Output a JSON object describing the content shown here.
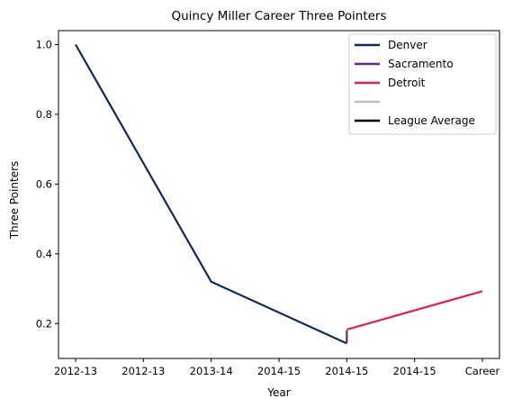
{
  "chart_data": {
    "type": "line",
    "title": "Quincy Miller Career Three Pointers",
    "xlabel": "Year",
    "ylabel": "Three Pointers",
    "x_ticks": [
      "2012-13",
      "2012-13",
      "2013-14",
      "2014-15",
      "2014-15",
      "2014-15",
      "Career"
    ],
    "y_ticks": [
      "0.2",
      "0.4",
      "0.6",
      "0.8",
      "1.0"
    ],
    "ylim": [
      0.1,
      1.04
    ],
    "grid": false,
    "legend_position": "top-right",
    "series": [
      {
        "name": "Denver",
        "color": "#0e2a5c",
        "points": [
          [
            0,
            1.0
          ],
          [
            2,
            0.32
          ],
          [
            4,
            0.143
          ]
        ]
      },
      {
        "name": "Sacramento",
        "color": "#5a2d82",
        "points": [
          [
            4,
            0.143
          ],
          [
            4,
            0.18
          ]
        ]
      },
      {
        "name": "Detroit",
        "color": "#e0204f",
        "points": [
          [
            4,
            0.183
          ],
          [
            6,
            0.293
          ]
        ]
      },
      {
        "name": "",
        "color": "#bdbdbd",
        "points": []
      },
      {
        "name": "League Average",
        "color": "#000000",
        "points": []
      }
    ]
  }
}
